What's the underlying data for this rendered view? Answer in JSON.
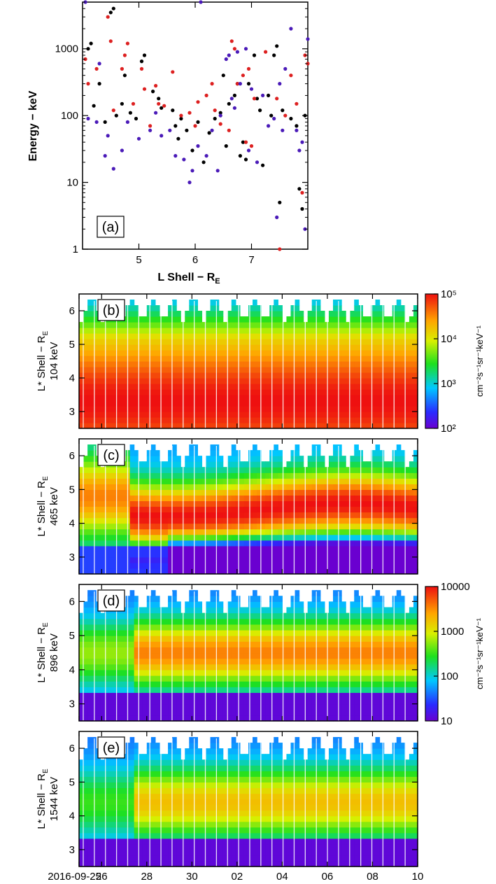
{
  "chart_data": [
    {
      "id": "a",
      "type": "scatter",
      "panel_label": "(a)",
      "xlabel": "L Shell − R",
      "xlabel_sub": "E",
      "ylabel": "Energy − keV",
      "xlim": [
        4.0,
        8.0
      ],
      "ylim": [
        1,
        5000
      ],
      "yscale": "log",
      "xticks": [
        "5",
        "6",
        "7"
      ],
      "yticks": [
        "1",
        "10",
        "100",
        "1000"
      ],
      "series": [
        {
          "name": "black",
          "color": "#000000",
          "points": [
            [
              4.1,
              1000
            ],
            [
              4.15,
              1200
            ],
            [
              4.2,
              140
            ],
            [
              4.3,
              300
            ],
            [
              4.4,
              80
            ],
            [
              4.5,
              3500
            ],
            [
              4.55,
              4000
            ],
            [
              4.6,
              100
            ],
            [
              4.7,
              150
            ],
            [
              4.75,
              400
            ],
            [
              4.85,
              110
            ],
            [
              4.95,
              90
            ],
            [
              5.05,
              650
            ],
            [
              5.1,
              800
            ],
            [
              5.25,
              230
            ],
            [
              5.35,
              180
            ],
            [
              5.4,
              130
            ],
            [
              5.6,
              120
            ],
            [
              5.65,
              70
            ],
            [
              5.7,
              45
            ],
            [
              5.75,
              90
            ],
            [
              5.85,
              60
            ],
            [
              5.95,
              30
            ],
            [
              6.05,
              80
            ],
            [
              6.15,
              20
            ],
            [
              6.25,
              55
            ],
            [
              6.35,
              90
            ],
            [
              6.45,
              110
            ],
            [
              6.5,
              400
            ],
            [
              6.55,
              35
            ],
            [
              6.6,
              150
            ],
            [
              6.7,
              200
            ],
            [
              6.75,
              300
            ],
            [
              6.8,
              25
            ],
            [
              6.85,
              40
            ],
            [
              6.9,
              22
            ],
            [
              6.95,
              300
            ],
            [
              7.05,
              800
            ],
            [
              7.1,
              180
            ],
            [
              7.15,
              120
            ],
            [
              7.2,
              18
            ],
            [
              7.3,
              200
            ],
            [
              7.35,
              100
            ],
            [
              7.4,
              800
            ],
            [
              7.45,
              1100
            ],
            [
              7.5,
              5
            ],
            [
              7.55,
              120
            ],
            [
              7.7,
              90
            ],
            [
              7.8,
              70
            ],
            [
              7.85,
              8
            ],
            [
              7.9,
              4
            ],
            [
              7.95,
              100
            ]
          ]
        },
        {
          "name": "red",
          "color": "#dd2020",
          "points": [
            [
              4.05,
              700
            ],
            [
              4.1,
              300
            ],
            [
              4.25,
              500
            ],
            [
              4.45,
              3000
            ],
            [
              4.5,
              1300
            ],
            [
              4.55,
              120
            ],
            [
              4.7,
              500
            ],
            [
              4.75,
              800
            ],
            [
              4.8,
              1200
            ],
            [
              4.9,
              150
            ],
            [
              5.05,
              500
            ],
            [
              5.1,
              250
            ],
            [
              5.2,
              70
            ],
            [
              5.3,
              280
            ],
            [
              5.35,
              150
            ],
            [
              5.45,
              140
            ],
            [
              5.6,
              450
            ],
            [
              5.75,
              100
            ],
            [
              5.9,
              110
            ],
            [
              6.0,
              70
            ],
            [
              6.05,
              160
            ],
            [
              6.2,
              200
            ],
            [
              6.3,
              300
            ],
            [
              6.35,
              120
            ],
            [
              6.45,
              75
            ],
            [
              6.6,
              60
            ],
            [
              6.65,
              1300
            ],
            [
              6.7,
              1000
            ],
            [
              6.75,
              300
            ],
            [
              6.85,
              400
            ],
            [
              6.9,
              40
            ],
            [
              6.95,
              500
            ],
            [
              7.0,
              35
            ],
            [
              7.05,
              180
            ],
            [
              7.25,
              900
            ],
            [
              7.45,
              180
            ],
            [
              7.5,
              1
            ],
            [
              7.6,
              100
            ],
            [
              7.7,
              400
            ],
            [
              7.8,
              150
            ],
            [
              7.9,
              7
            ],
            [
              7.95,
              800
            ],
            [
              8.0,
              600
            ]
          ]
        },
        {
          "name": "blue",
          "color": "#4a1ab8",
          "points": [
            [
              4.05,
              5000
            ],
            [
              4.1,
              90
            ],
            [
              4.25,
              80
            ],
            [
              4.3,
              600
            ],
            [
              4.4,
              25
            ],
            [
              4.45,
              50
            ],
            [
              4.55,
              16
            ],
            [
              4.7,
              30
            ],
            [
              4.8,
              80
            ],
            [
              5.0,
              45
            ],
            [
              5.2,
              60
            ],
            [
              5.3,
              110
            ],
            [
              5.4,
              50
            ],
            [
              5.55,
              60
            ],
            [
              5.65,
              25
            ],
            [
              5.8,
              22
            ],
            [
              5.9,
              10
            ],
            [
              5.95,
              15
            ],
            [
              6.05,
              35
            ],
            [
              6.1,
              5000
            ],
            [
              6.2,
              25
            ],
            [
              6.3,
              60
            ],
            [
              6.4,
              15
            ],
            [
              6.45,
              100
            ],
            [
              6.55,
              700
            ],
            [
              6.6,
              800
            ],
            [
              6.65,
              180
            ],
            [
              6.7,
              130
            ],
            [
              6.75,
              900
            ],
            [
              6.8,
              300
            ],
            [
              6.9,
              1000
            ],
            [
              6.95,
              30
            ],
            [
              7.0,
              250
            ],
            [
              7.1,
              20
            ],
            [
              7.2,
              200
            ],
            [
              7.3,
              70
            ],
            [
              7.4,
              90
            ],
            [
              7.45,
              3
            ],
            [
              7.5,
              300
            ],
            [
              7.55,
              60
            ],
            [
              7.6,
              500
            ],
            [
              7.7,
              2000
            ],
            [
              7.8,
              60
            ],
            [
              7.85,
              30
            ],
            [
              7.9,
              40
            ],
            [
              7.95,
              2
            ],
            [
              8.0,
              1400
            ]
          ]
        }
      ]
    },
    {
      "id": "b",
      "type": "heatmap",
      "panel_label": "(b)",
      "ylabel_line1": "L* Shell − R",
      "ylabel_sub": "E",
      "ylabel_line2": "104 keV",
      "ylim": [
        2.5,
        6.5
      ],
      "yticks": [
        "3",
        "4",
        "5",
        "6"
      ],
      "profile": "low",
      "colorbar": {
        "label": "cm⁻²s⁻¹sr⁻¹keV⁻¹",
        "ticks": [
          "10²",
          "10³",
          "10⁴",
          "10⁵"
        ],
        "range": [
          100,
          100000
        ],
        "scale": "log"
      }
    },
    {
      "id": "c",
      "type": "heatmap",
      "panel_label": "(c)",
      "ylabel_line1": "L* Shell − R",
      "ylabel_sub": "E",
      "ylabel_line2": "465 keV",
      "ylim": [
        2.5,
        6.5
      ],
      "yticks": [
        "3",
        "4",
        "5",
        "6"
      ],
      "profile": "mid"
    },
    {
      "id": "d",
      "type": "heatmap",
      "panel_label": "(d)",
      "ylabel_line1": "L* Shell − R",
      "ylabel_sub": "E",
      "ylabel_line2": "896 keV",
      "ylim": [
        2.5,
        6.5
      ],
      "yticks": [
        "3",
        "4",
        "5",
        "6"
      ],
      "profile": "high",
      "colorbar": {
        "label": "cm⁻²s⁻¹sr⁻¹keV⁻¹",
        "ticks": [
          "10",
          "100",
          "1000",
          "10000"
        ],
        "range": [
          10,
          10000
        ],
        "scale": "log"
      }
    },
    {
      "id": "e",
      "type": "heatmap",
      "panel_label": "(e)",
      "ylabel_line1": "L* Shell − R",
      "ylabel_sub": "E",
      "ylabel_line2": "1544 keV",
      "ylim": [
        2.5,
        6.5
      ],
      "yticks": [
        "3",
        "4",
        "5",
        "6"
      ],
      "profile": "higher",
      "xticks": [
        "2016-09-25",
        "26",
        "28",
        "30",
        "02",
        "04",
        "06",
        "08",
        "10"
      ],
      "xlim_days": [
        0,
        15
      ],
      "xtick_days": [
        0,
        1,
        3,
        5,
        7,
        9,
        11,
        13,
        15
      ]
    }
  ]
}
